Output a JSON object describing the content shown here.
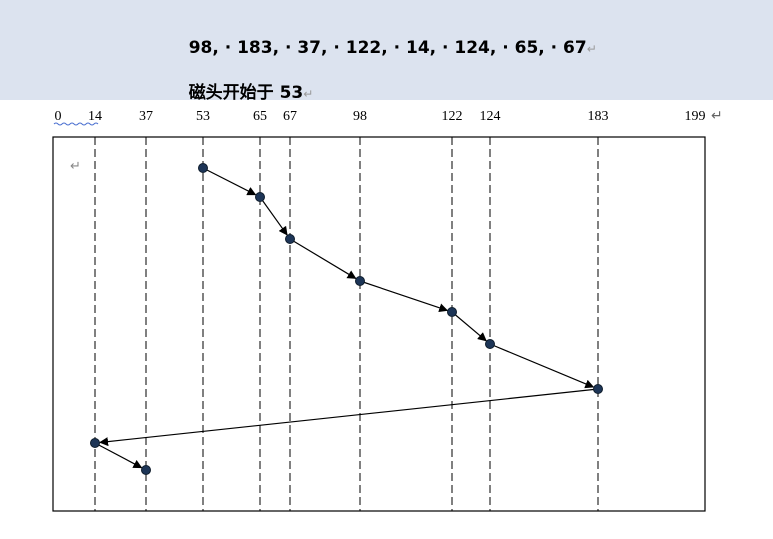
{
  "header": {
    "sequence_text": "98, · 183, · 37, · 122, · 14, · 124, · 65, · 67",
    "start_text": "磁头开始于 53",
    "mark": "↵"
  },
  "chart_data": {
    "type": "line",
    "tick_labels": [
      "0",
      "14",
      "37",
      "53",
      "65",
      "67",
      "98",
      "122",
      "124",
      "183",
      "199"
    ],
    "ticks": [
      0,
      14,
      37,
      53,
      65,
      67,
      98,
      122,
      124,
      183,
      199
    ],
    "xlim": [
      0,
      199
    ],
    "path": [
      53,
      65,
      67,
      98,
      122,
      124,
      183,
      14,
      37
    ],
    "grid": "vertical dashed lines at each track (except 0 and 199)"
  }
}
